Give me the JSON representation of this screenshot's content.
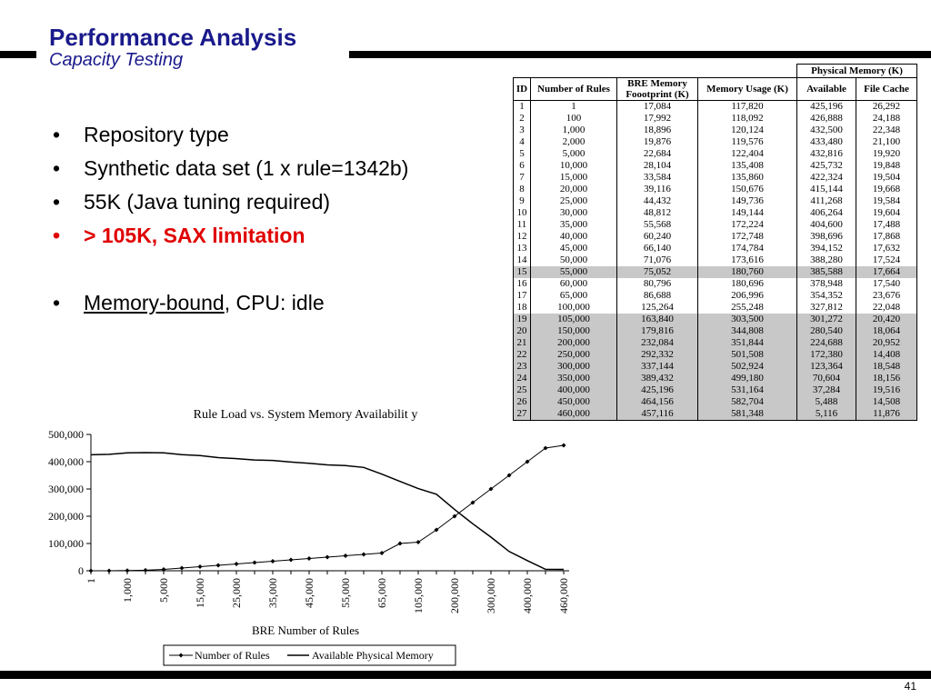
{
  "slide": {
    "title": "Performance Analysis",
    "subtitle": "Capacity Testing",
    "page_number": "41"
  },
  "bullets": [
    {
      "text": "Repository type"
    },
    {
      "text": "Synthetic data set (1 x rule=1342b)"
    },
    {
      "text": "55K (Java tuning required)"
    },
    {
      "text": "> 105K, SAX limitation",
      "color": "#e00000"
    },
    {
      "underlined": "Memory-bound",
      "rest": ", CPU: idle"
    }
  ],
  "table": {
    "group_header": "Physical Memory (K)",
    "columns": [
      "ID",
      "Number of Rules",
      "BRE Memory Foootprint (K)",
      "Memory Usage (K)",
      "Available",
      "File Cache"
    ],
    "rows": [
      [
        "1",
        "1",
        "17,084",
        "117,820",
        "425,196",
        "26,292"
      ],
      [
        "2",
        "100",
        "17,992",
        "118,092",
        "426,888",
        "24,188"
      ],
      [
        "3",
        "1,000",
        "18,896",
        "120,124",
        "432,500",
        "22,348"
      ],
      [
        "4",
        "2,000",
        "19,876",
        "119,576",
        "433,480",
        "21,100"
      ],
      [
        "5",
        "5,000",
        "22,684",
        "122,404",
        "432,816",
        "19,920"
      ],
      [
        "6",
        "10,000",
        "28,104",
        "135,408",
        "425,732",
        "19,848"
      ],
      [
        "7",
        "15,000",
        "33,584",
        "135,860",
        "422,324",
        "19,504"
      ],
      [
        "8",
        "20,000",
        "39,116",
        "150,676",
        "415,144",
        "19,668"
      ],
      [
        "9",
        "25,000",
        "44,432",
        "149,736",
        "411,268",
        "19,584"
      ],
      [
        "10",
        "30,000",
        "48,812",
        "149,144",
        "406,264",
        "19,604"
      ],
      [
        "11",
        "35,000",
        "55,568",
        "172,224",
        "404,600",
        "17,488"
      ],
      [
        "12",
        "40,000",
        "60,240",
        "172,748",
        "398,696",
        "17,868"
      ],
      [
        "13",
        "45,000",
        "66,140",
        "174,784",
        "394,152",
        "17,632"
      ],
      [
        "14",
        "50,000",
        "71,076",
        "173,616",
        "388,280",
        "17,524"
      ],
      [
        "15",
        "55,000",
        "75,052",
        "180,760",
        "385,588",
        "17,664"
      ],
      [
        "16",
        "60,000",
        "80,796",
        "180,696",
        "378,948",
        "17,540"
      ],
      [
        "17",
        "65,000",
        "86,688",
        "206,996",
        "354,352",
        "23,676"
      ],
      [
        "18",
        "100,000",
        "125,264",
        "255,248",
        "327,812",
        "22,048"
      ],
      [
        "19",
        "105,000",
        "163,840",
        "303,500",
        "301,272",
        "20,420"
      ],
      [
        "20",
        "150,000",
        "179,816",
        "344,808",
        "280,540",
        "18,064"
      ],
      [
        "21",
        "200,000",
        "232,084",
        "351,844",
        "224,688",
        "20,952"
      ],
      [
        "22",
        "250,000",
        "292,332",
        "501,508",
        "172,380",
        "14,408"
      ],
      [
        "23",
        "300,000",
        "337,144",
        "502,924",
        "123,364",
        "18,548"
      ],
      [
        "24",
        "350,000",
        "389,432",
        "499,180",
        "70,604",
        "18,156"
      ],
      [
        "25",
        "400,000",
        "425,196",
        "531,164",
        "37,284",
        "19,516"
      ],
      [
        "26",
        "450,000",
        "464,156",
        "582,704",
        "5,488",
        "14,508"
      ],
      [
        "27",
        "460,000",
        "457,116",
        "581,348",
        "5,116",
        "11,876"
      ]
    ],
    "highlight_color": "#c8c8c8"
  },
  "chart_data": {
    "type": "line",
    "title": "Rule Load vs. System Memory Availabilit   y",
    "xlabel": "BRE Number of Rules",
    "ylabel": "",
    "categories": [
      "1",
      "100",
      "1,000",
      "2,000",
      "5,000",
      "10,000",
      "15,000",
      "20,000",
      "25,000",
      "30,000",
      "35,000",
      "40,000",
      "45,000",
      "50,000",
      "55,000",
      "60,000",
      "65,000",
      "100,000",
      "105,000",
      "150,000",
      "200,000",
      "250,000",
      "300,000",
      "350,000",
      "400,000",
      "450,000",
      "460,000"
    ],
    "tick_labels": [
      "1",
      "1,000",
      "5,000",
      "15,000",
      "25,000",
      "35,000",
      "45,000",
      "55,000",
      "65,000",
      "105,000",
      "200,000",
      "300,000",
      "400,000",
      "460,000"
    ],
    "ylim": [
      0,
      500000
    ],
    "yticks": [
      "0",
      "100,000",
      "200,000",
      "300,000",
      "400,000",
      "500,000"
    ],
    "legend_position": "bottom",
    "series": [
      {
        "name": "Number of Rules",
        "marker": "diamond",
        "values": [
          1,
          100,
          1000,
          2000,
          5000,
          10000,
          15000,
          20000,
          25000,
          30000,
          35000,
          40000,
          45000,
          50000,
          55000,
          60000,
          65000,
          100000,
          105000,
          150000,
          200000,
          250000,
          300000,
          350000,
          400000,
          450000,
          460000
        ]
      },
      {
        "name": "Available Physical Memory",
        "marker": "none",
        "values": [
          425196,
          426888,
          432500,
          433480,
          432816,
          425732,
          422324,
          415144,
          411268,
          406264,
          404600,
          398696,
          394152,
          388280,
          385588,
          378948,
          354352,
          327812,
          301272,
          280540,
          224688,
          172380,
          123364,
          70604,
          37284,
          5488,
          5116
        ]
      }
    ]
  }
}
